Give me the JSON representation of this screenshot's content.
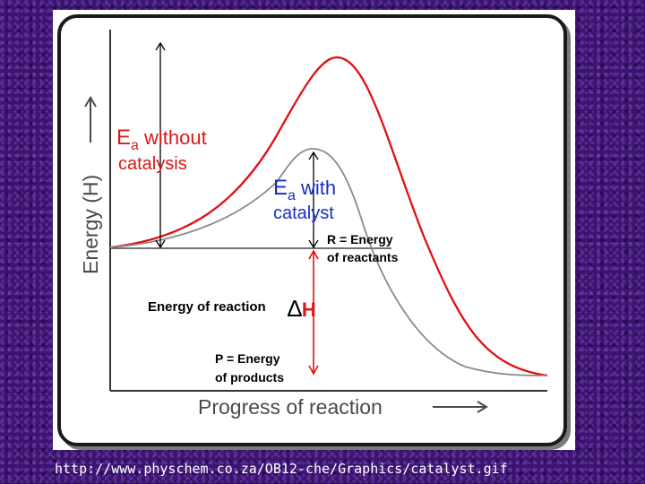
{
  "diagram": {
    "label_ea_without": {
      "ea": "E",
      "sub": "a",
      "rest": " without",
      "line2": "catalysis"
    },
    "label_ea_with": {
      "ea": "E",
      "sub": "a",
      "rest": " with",
      "line2": "catalyst"
    },
    "label_r": {
      "line1": "R = Energy",
      "line2": "of reactants"
    },
    "label_p": {
      "line1": "P = Energy",
      "line2": "of products"
    },
    "energy_of_reaction": "Energy of reaction",
    "delta_h": {
      "delta": "∆",
      "h": "H"
    },
    "y_axis_title": "Energy (H)",
    "x_axis_title": "Progress of reaction",
    "colors": {
      "uncatalyzed": "#e01010",
      "catalyzed": "#8a8a8a",
      "arrows": "#e01010",
      "axes": "#333333"
    }
  },
  "footer": {
    "source_url": "http://www.physchem.co.za/OB12-che/Graphics/catalyst.gif"
  }
}
